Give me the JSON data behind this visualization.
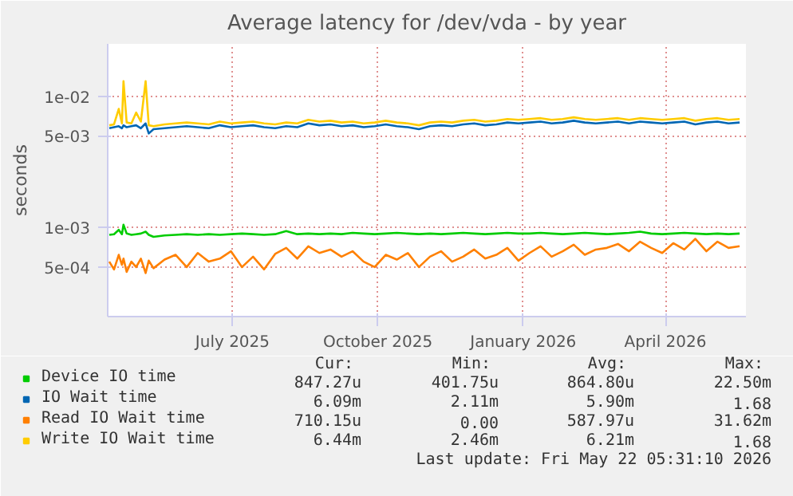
{
  "chart_data": {
    "type": "line",
    "title": "Average latency for /dev/vda - by year",
    "ylabel": "seconds",
    "log": "y",
    "x": [
      "2025-04-14",
      "2025-04-17",
      "2025-04-20",
      "2025-04-22",
      "2025-04-23",
      "2025-04-25",
      "2025-04-28",
      "2025-05-01",
      "2025-05-04",
      "2025-05-07",
      "2025-05-09",
      "2025-05-12",
      "2025-05-19",
      "2025-05-26",
      "2025-06-02",
      "2025-06-09",
      "2025-06-16",
      "2025-06-23",
      "2025-06-30",
      "2025-07-07",
      "2025-07-14",
      "2025-07-21",
      "2025-07-28",
      "2025-08-04",
      "2025-08-11",
      "2025-08-18",
      "2025-08-25",
      "2025-09-01",
      "2025-09-08",
      "2025-09-15",
      "2025-09-22",
      "2025-09-29",
      "2025-10-06",
      "2025-10-13",
      "2025-10-20",
      "2025-10-27",
      "2025-11-03",
      "2025-11-10",
      "2025-11-17",
      "2025-11-24",
      "2025-12-01",
      "2025-12-08",
      "2025-12-15",
      "2025-12-22",
      "2025-12-29",
      "2026-01-05",
      "2026-01-12",
      "2026-01-19",
      "2026-01-26",
      "2026-02-02",
      "2026-02-09",
      "2026-02-16",
      "2026-02-23",
      "2026-03-02",
      "2026-03-09",
      "2026-03-16",
      "2026-03-23",
      "2026-03-30",
      "2026-04-06",
      "2026-04-13",
      "2026-04-20",
      "2026-04-27",
      "2026-05-04",
      "2026-05-11",
      "2026-05-18"
    ],
    "series": [
      {
        "name": "Device IO time",
        "color": "#00cc00",
        "values": [
          0.00088,
          0.00089,
          0.00096,
          0.00089,
          0.00105,
          0.0009,
          0.00088,
          0.00089,
          0.0009,
          0.00093,
          0.00088,
          0.00085,
          0.00087,
          0.00088,
          0.00089,
          0.00088,
          0.00089,
          0.00088,
          0.00089,
          0.0009,
          0.00089,
          0.00088,
          0.00089,
          0.00094,
          0.00089,
          0.0009,
          0.00089,
          0.0009,
          0.00089,
          0.00091,
          0.0009,
          0.00089,
          0.0009,
          0.00091,
          0.0009,
          0.00089,
          0.0009,
          0.00089,
          0.0009,
          0.00091,
          0.0009,
          0.00089,
          0.0009,
          0.00091,
          0.0009,
          0.0009,
          0.00091,
          0.0009,
          0.00089,
          0.0009,
          0.00091,
          0.0009,
          0.00089,
          0.0009,
          0.00091,
          0.00093,
          0.0009,
          0.00089,
          0.0009,
          0.00091,
          0.0009,
          0.00089,
          0.0009,
          0.00089,
          0.0009
        ]
      },
      {
        "name": "IO Wait time",
        "color": "#0066b3",
        "values": [
          0.0057,
          0.0058,
          0.0059,
          0.0057,
          0.006,
          0.0058,
          0.0059,
          0.006,
          0.0057,
          0.0062,
          0.0052,
          0.0056,
          0.0057,
          0.0058,
          0.0059,
          0.0058,
          0.0057,
          0.006,
          0.0058,
          0.0059,
          0.006,
          0.0058,
          0.0057,
          0.0059,
          0.0058,
          0.0062,
          0.006,
          0.0061,
          0.0059,
          0.006,
          0.0058,
          0.0059,
          0.0061,
          0.0059,
          0.0058,
          0.0056,
          0.0059,
          0.006,
          0.0059,
          0.0061,
          0.0062,
          0.006,
          0.0061,
          0.0063,
          0.0062,
          0.0063,
          0.0064,
          0.0062,
          0.0063,
          0.0065,
          0.0063,
          0.0062,
          0.0063,
          0.0064,
          0.0062,
          0.0064,
          0.0063,
          0.0062,
          0.0063,
          0.0064,
          0.0061,
          0.0063,
          0.0064,
          0.0062,
          0.0063
        ]
      },
      {
        "name": "Read IO Wait time",
        "color": "#ff8000",
        "values": [
          0.00055,
          0.00048,
          0.00062,
          0.00052,
          0.00058,
          0.00046,
          0.00055,
          0.0005,
          0.00058,
          0.00045,
          0.00056,
          0.00049,
          0.00057,
          0.00062,
          0.0005,
          0.00064,
          0.00055,
          0.00058,
          0.00066,
          0.0005,
          0.0006,
          0.00048,
          0.00063,
          0.0007,
          0.00058,
          0.00072,
          0.00064,
          0.00068,
          0.0006,
          0.00066,
          0.00055,
          0.0005,
          0.00062,
          0.00057,
          0.00064,
          0.0005,
          0.0006,
          0.00066,
          0.00055,
          0.0006,
          0.00068,
          0.00058,
          0.00062,
          0.0007,
          0.00056,
          0.00064,
          0.00072,
          0.0006,
          0.00066,
          0.00074,
          0.00062,
          0.00068,
          0.0007,
          0.00075,
          0.00066,
          0.00078,
          0.0007,
          0.00064,
          0.00076,
          0.00068,
          0.00082,
          0.00066,
          0.00078,
          0.0007,
          0.00072
        ]
      },
      {
        "name": "Write IO Wait time",
        "color": "#ffcc00",
        "values": [
          0.006,
          0.0061,
          0.008,
          0.0062,
          0.013,
          0.0063,
          0.0062,
          0.0075,
          0.0064,
          0.013,
          0.006,
          0.0059,
          0.0061,
          0.0062,
          0.0063,
          0.0062,
          0.0061,
          0.0064,
          0.0062,
          0.0063,
          0.0064,
          0.0062,
          0.0061,
          0.0063,
          0.0062,
          0.0066,
          0.0064,
          0.0065,
          0.0063,
          0.0064,
          0.0062,
          0.0063,
          0.0065,
          0.0063,
          0.0062,
          0.006,
          0.0063,
          0.0064,
          0.0063,
          0.0065,
          0.0066,
          0.0064,
          0.0065,
          0.0067,
          0.0066,
          0.0067,
          0.0068,
          0.0066,
          0.0067,
          0.0069,
          0.0067,
          0.0066,
          0.0067,
          0.0068,
          0.0066,
          0.0068,
          0.0067,
          0.0066,
          0.0067,
          0.0068,
          0.0065,
          0.0067,
          0.0068,
          0.0066,
          0.0067
        ]
      }
    ],
    "xlim": [
      "2025-04-13",
      "2026-05-22"
    ],
    "xticks": [
      {
        "value": "2025-07-01",
        "label": "July 2025"
      },
      {
        "value": "2025-10-01",
        "label": "October 2025"
      },
      {
        "value": "2026-01-01",
        "label": "January 2026"
      },
      {
        "value": "2026-04-01",
        "label": "April 2026"
      }
    ],
    "ylim": [
      0.00021,
      0.025
    ],
    "yticks": [
      {
        "value": 0.0005,
        "label": "5e-04"
      },
      {
        "value": 0.001,
        "label": "1e-03"
      },
      {
        "value": 0.005,
        "label": "5e-03"
      },
      {
        "value": 0.01,
        "label": "1e-02"
      }
    ],
    "grid": true,
    "legend": "bottom",
    "annotations": [
      "Cur:",
      "Min:",
      "Avg:",
      "Max:",
      "847.27u",
      "401.75u",
      "864.80u",
      "22.50m",
      "6.09m",
      "2.11m",
      "5.90m",
      "1.68",
      "710.15u",
      "0.00",
      "587.97u",
      "31.62m",
      "6.44m",
      "2.46m",
      "6.21m",
      "1.68",
      "Last update: Fri May 22 05:31:10 2026"
    ]
  }
}
